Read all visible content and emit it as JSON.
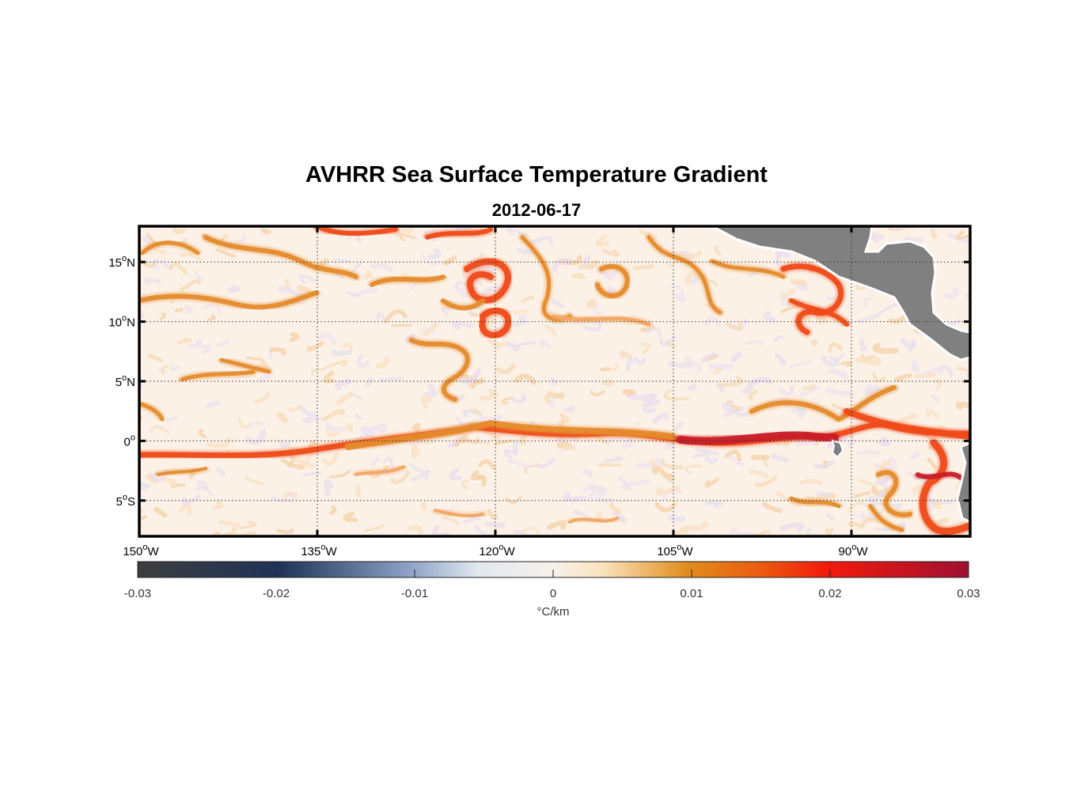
{
  "figure": {
    "title": "AVHRR Sea Surface Temperature Gradient",
    "date": "2012-06-17"
  },
  "map": {
    "lon_range": [
      -150,
      -80
    ],
    "lat_range": [
      -8,
      18
    ],
    "lon_ticks": [
      {
        "value": -150,
        "num": "150",
        "hemi": "W"
      },
      {
        "value": -135,
        "num": "135",
        "hemi": "W"
      },
      {
        "value": -120,
        "num": "120",
        "hemi": "W"
      },
      {
        "value": -105,
        "num": "105",
        "hemi": "W"
      },
      {
        "value": -90,
        "num": "90",
        "hemi": "W"
      }
    ],
    "lat_ticks": [
      {
        "value": 15,
        "num": "15",
        "hemi": "N"
      },
      {
        "value": 10,
        "num": "10",
        "hemi": "N"
      },
      {
        "value": 5,
        "num": "5",
        "hemi": "N"
      },
      {
        "value": 0,
        "num": "0",
        "hemi": ""
      },
      {
        "value": -5,
        "num": "5",
        "hemi": "S"
      }
    ],
    "land_color": "#808080",
    "gridlines": "dotted"
  },
  "colorbar": {
    "range": [
      -0.03,
      0.03
    ],
    "ticks": [
      {
        "value": -0.03,
        "label": "-0.03"
      },
      {
        "value": -0.02,
        "label": "-0.02"
      },
      {
        "value": -0.01,
        "label": "-0.01"
      },
      {
        "value": 0,
        "label": "0"
      },
      {
        "value": 0.01,
        "label": "0.01"
      },
      {
        "value": 0.02,
        "label": "0.02"
      },
      {
        "value": 0.03,
        "label": "0.03"
      }
    ],
    "units": "°C/km",
    "colors": [
      "#3d3d3d",
      "#1f3358",
      "#8fa4c8",
      "#f6f1ea",
      "#fbe6c6",
      "#e08e1c",
      "#f21a0c",
      "#a01030"
    ]
  }
}
